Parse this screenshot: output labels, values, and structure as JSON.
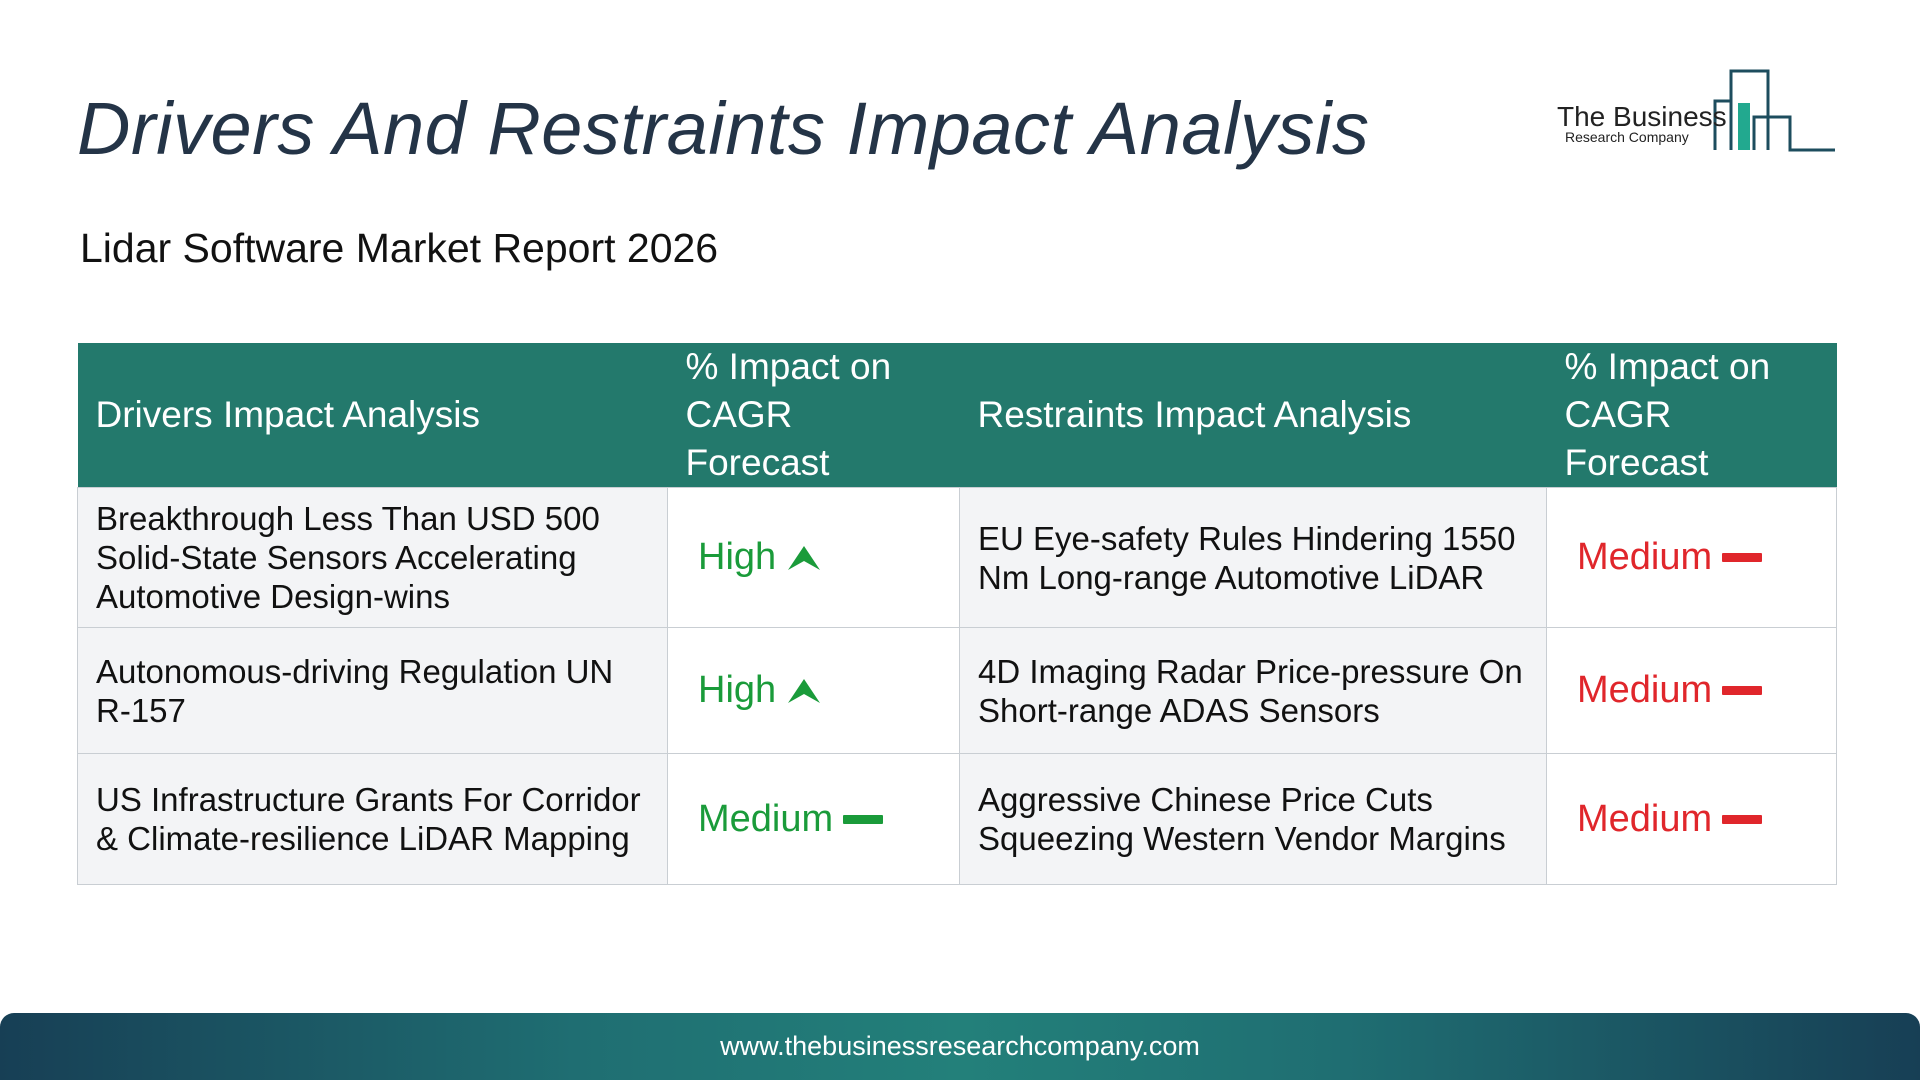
{
  "header": {
    "title": "Drivers And Restraints Impact Analysis",
    "subtitle": "Lidar Software Market Report 2026"
  },
  "logo": {
    "line1": "The Business",
    "line2": "Research Company",
    "icon": "bar-chart-logo-icon"
  },
  "table": {
    "columns": [
      "Drivers Impact Analysis",
      "% Impact on CAGR Forecast",
      "Restraints Impact Analysis",
      "% Impact on CAGR Forecast"
    ],
    "rows": [
      {
        "driver": "Breakthrough Less Than USD 500 Solid-State Sensors Accelerating Automotive Design-wins",
        "driver_impact": "High",
        "driver_icon": "arrow-up-icon",
        "restraint": "EU Eye-safety Rules Hindering 1550 Nm Long-range Automotive LiDAR",
        "restraint_impact": "Medium",
        "restraint_icon": "dash-icon"
      },
      {
        "driver": "Autonomous-driving Regulation UN R-157",
        "driver_impact": "High",
        "driver_icon": "arrow-up-icon",
        "restraint": "4D Imaging Radar Price-pressure On Short-range ADAS Sensors",
        "restraint_impact": "Medium",
        "restraint_icon": "dash-icon"
      },
      {
        "driver": "US Infrastructure Grants For Corridor & Climate-resilience LiDAR Mapping",
        "driver_impact": "Medium",
        "driver_icon": "dash-icon",
        "restraint": "Aggressive Chinese Price Cuts Squeezing Western Vendor Margins",
        "restraint_impact": "Medium",
        "restraint_icon": "dash-icon"
      }
    ]
  },
  "colors": {
    "header_bg": "#23796c",
    "positive": "#1a9b3a",
    "negative": "#e0262b",
    "title": "#243447"
  },
  "footer": {
    "url": "www.thebusinessresearchcompany.com"
  }
}
